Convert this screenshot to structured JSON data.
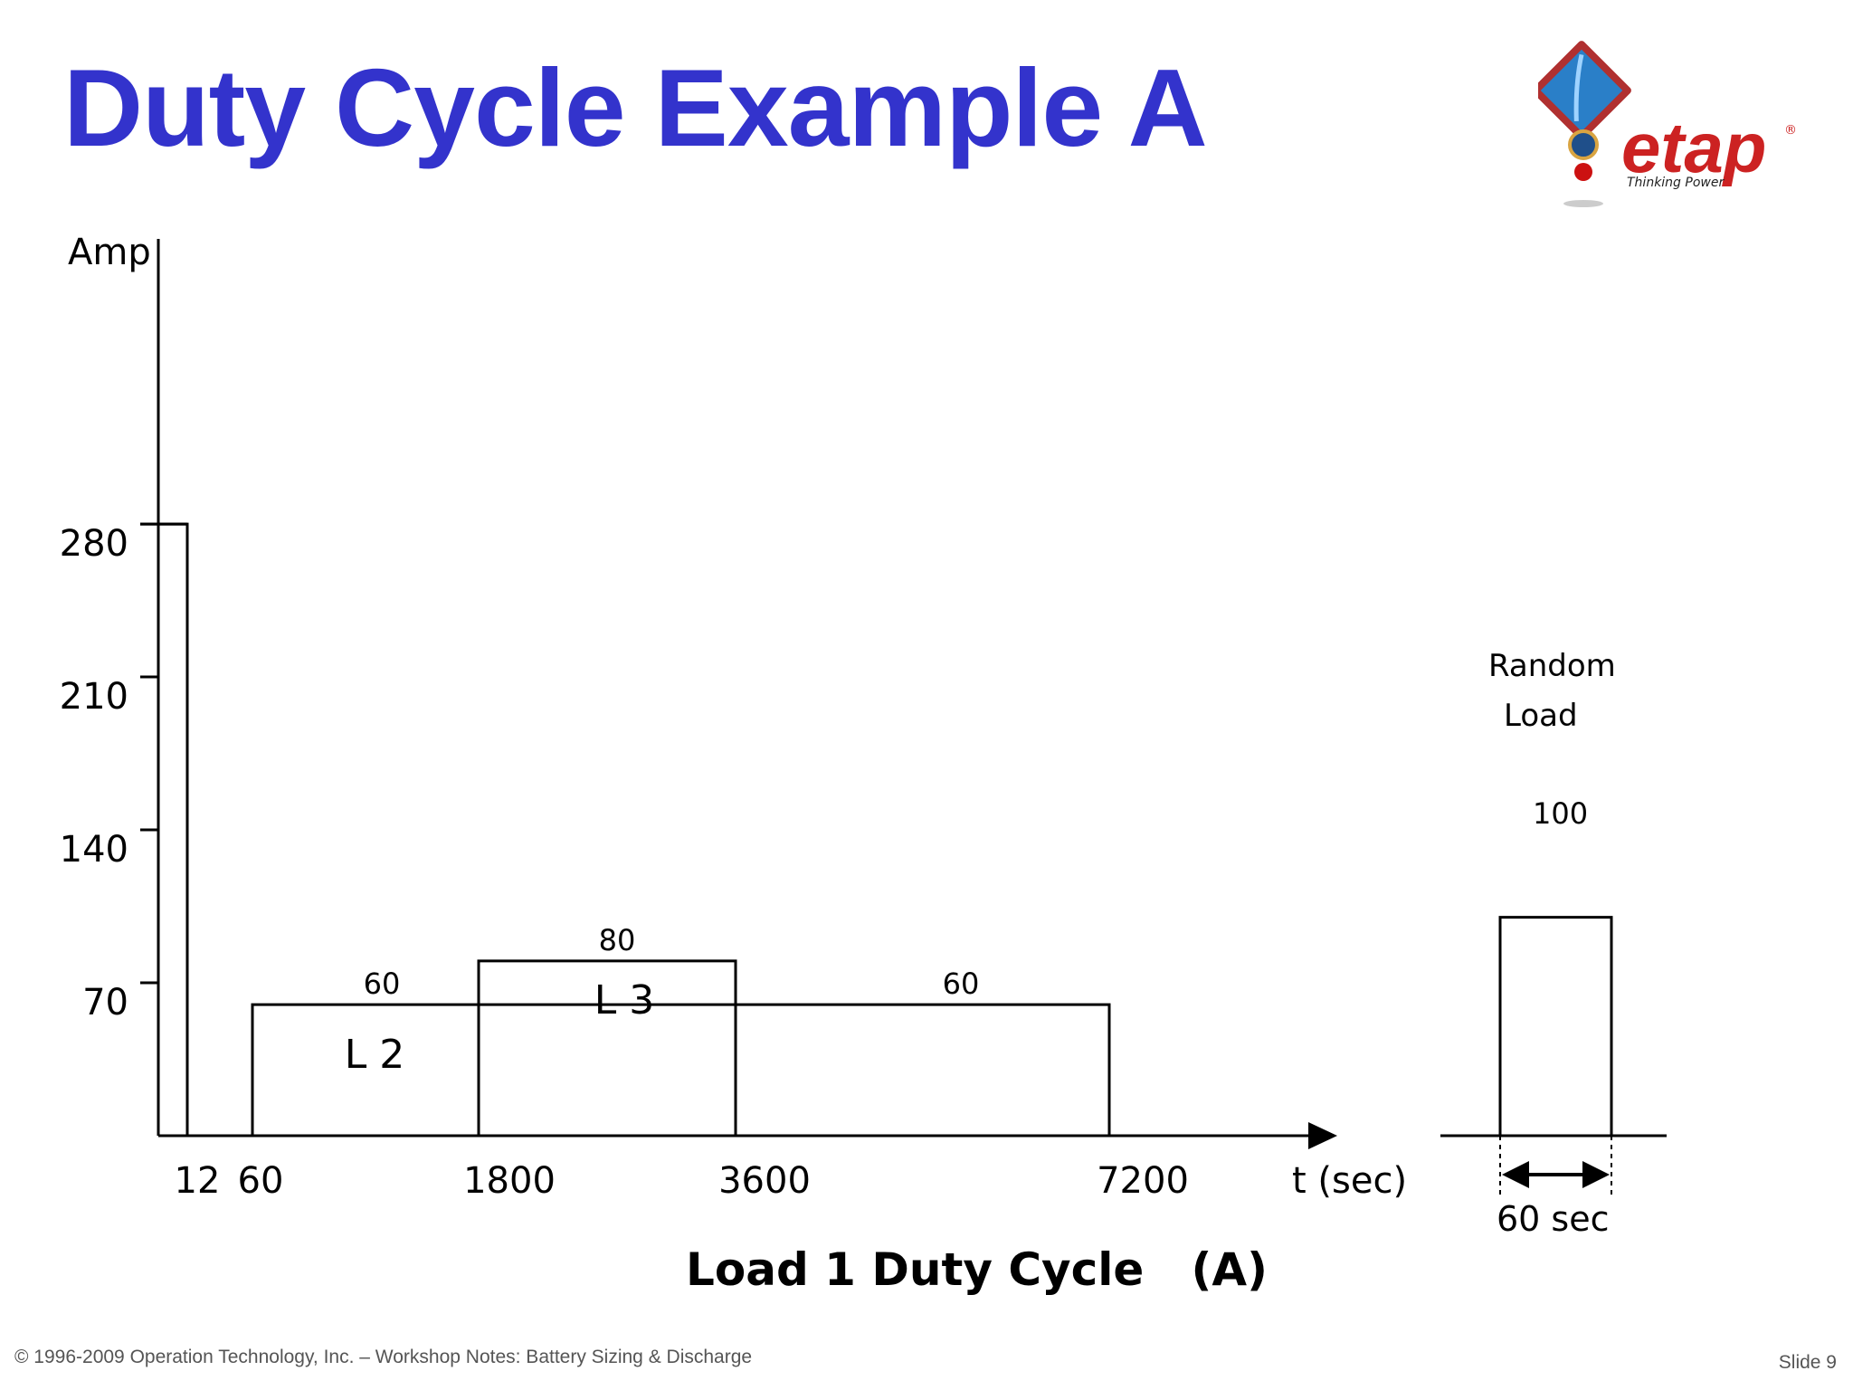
{
  "slide": {
    "title": "Duty Cycle Example A",
    "footer": "© 1996-2009 Operation Technology, Inc. – Workshop Notes: Battery Sizing & Discharge",
    "slide_number": "Slide 9"
  },
  "logo": {
    "wordmark": "etap",
    "tagline": "Thinking Power",
    "registered": "®",
    "colors": {
      "wordmark": "#cc2222",
      "screen": "#2a7fc8",
      "frame": "#b03030"
    }
  },
  "chart_data": {
    "type": "step",
    "title": "Load 1 Duty Cycle   (A)",
    "xlabel": "t (sec)",
    "ylabel": "Amp",
    "y_ticks": [
      70,
      140,
      210,
      280
    ],
    "x_ticks": [
      12,
      60,
      1800,
      3600,
      7200
    ],
    "x_tick_labels": [
      "12",
      "60",
      "1800",
      "3600",
      "7200"
    ],
    "loads": [
      {
        "name": "",
        "value": 280,
        "start": 0,
        "end": 12,
        "label": ""
      },
      {
        "name": "L 2",
        "value": 60,
        "start": 60,
        "end": 7200,
        "label": "60",
        "label2": "60"
      },
      {
        "name": "L 3",
        "value": 80,
        "start": 1800,
        "end": 3600,
        "label": "80"
      }
    ],
    "random_load": {
      "title_line1": "Random",
      "title_line2": "Load",
      "value": 100,
      "value_label": "100",
      "duration_label": "60 sec"
    }
  }
}
